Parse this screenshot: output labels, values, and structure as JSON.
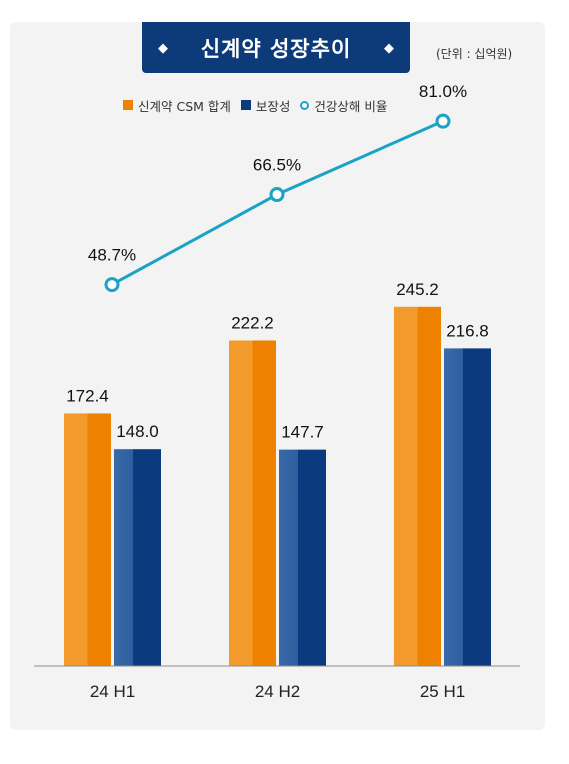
{
  "title": "신계약 성장추이",
  "unit_note": "(단위 : 십억원)",
  "colors": {
    "csm": "#ef8100",
    "protection": "#0b3b7e",
    "health_ratio": "#1aa3c6",
    "title_bg": "#0d3a78"
  },
  "legend": [
    {
      "label": "신계약 CSM 합계",
      "marker": "square",
      "color": "#ef8100"
    },
    {
      "label": "보장성",
      "marker": "square",
      "color": "#0b3b7e"
    },
    {
      "label": "건강상해 비율",
      "marker": "ring",
      "color": "#1aa3c6"
    }
  ],
  "chart_data": {
    "type": "bar",
    "categories": [
      "24 H1",
      "24 H2",
      "25 H1"
    ],
    "series": [
      {
        "name": "신계약 CSM 합계",
        "type": "bar",
        "values": [
          172.4,
          222.2,
          245.2
        ],
        "labels": [
          "172.4",
          "222.2",
          "245.2"
        ]
      },
      {
        "name": "보장성",
        "type": "bar",
        "values": [
          148.0,
          147.7,
          216.8
        ],
        "labels": [
          "148.0",
          "147.7",
          "216.8"
        ]
      },
      {
        "name": "건강상해 비율",
        "type": "line",
        "values": [
          48.7,
          66.5,
          81.0
        ],
        "labels": [
          "48.7%",
          "66.5%",
          "81.0%"
        ]
      }
    ],
    "title": "신계약 성장추이",
    "xlabel": "",
    "ylabel": "",
    "ylim": [
      0,
      290
    ],
    "grid": false,
    "legend_position": "top"
  }
}
